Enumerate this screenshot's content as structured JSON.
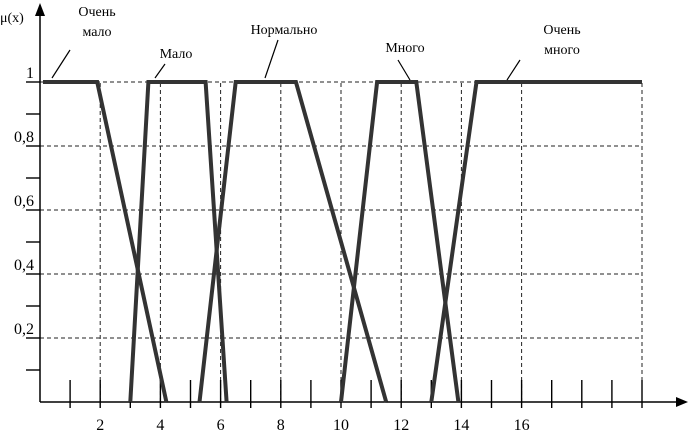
{
  "chart_data": {
    "type": "line",
    "title": "",
    "ylabel": "μ(x)",
    "xlabel": "",
    "xlim": [
      0,
      20.8
    ],
    "ylim": [
      0,
      1
    ],
    "grid": true,
    "grid_style": "dashed",
    "x_ticks": [
      1,
      2,
      3,
      4,
      5,
      6,
      7,
      8,
      9,
      10,
      11,
      12,
      13,
      14,
      15,
      16,
      17,
      18,
      19,
      20
    ],
    "x_tick_labels": [
      {
        "x": 2,
        "label": "2"
      },
      {
        "x": 4,
        "label": "4"
      },
      {
        "x": 6,
        "label": "6"
      },
      {
        "x": 8,
        "label": "8"
      },
      {
        "x": 10,
        "label": "10"
      },
      {
        "x": 12,
        "label": "12"
      },
      {
        "x": 14,
        "label": "14"
      },
      {
        "x": 16,
        "label": "16"
      }
    ],
    "y_ticks": [
      0.1,
      0.2,
      0.3,
      0.4,
      0.5,
      0.6,
      0.7,
      0.8,
      0.9,
      1.0
    ],
    "y_tick_labels": [
      {
        "y": 0.2,
        "label": "0,2"
      },
      {
        "y": 0.4,
        "label": "0,4"
      },
      {
        "y": 0.6,
        "label": "0,6"
      },
      {
        "y": 0.8,
        "label": "0,8"
      },
      {
        "y": 1.0,
        "label": "1"
      }
    ],
    "grid_x": [
      2,
      4,
      6,
      8,
      10,
      12,
      14,
      16,
      20
    ],
    "grid_y": [
      0.2,
      0.4,
      0.6,
      0.8,
      1.0
    ],
    "series": [
      {
        "name": "Очень мало",
        "label_lines": [
          "Очень",
          "мало"
        ],
        "points": [
          [
            0.1,
            1
          ],
          [
            1.9,
            1
          ],
          [
            4.2,
            0
          ]
        ]
      },
      {
        "name": "Мало",
        "label_lines": [
          "Мало"
        ],
        "points": [
          [
            3.0,
            0
          ],
          [
            3.6,
            1
          ],
          [
            5.5,
            1
          ],
          [
            6.2,
            0
          ]
        ]
      },
      {
        "name": "Нормально",
        "label_lines": [
          "Нормально"
        ],
        "points": [
          [
            5.3,
            0
          ],
          [
            6.5,
            1
          ],
          [
            8.5,
            1
          ],
          [
            11.5,
            0
          ]
        ]
      },
      {
        "name": "Много",
        "label_lines": [
          "Много"
        ],
        "points": [
          [
            10.0,
            0
          ],
          [
            11.2,
            1
          ],
          [
            12.5,
            1
          ],
          [
            13.9,
            0
          ]
        ]
      },
      {
        "name": "Очень много",
        "label_lines": [
          "Очень",
          "много"
        ],
        "points": [
          [
            13.0,
            0
          ],
          [
            14.5,
            1
          ],
          [
            20.0,
            1
          ]
        ]
      }
    ],
    "line_color": "#333333",
    "grid_color": "#222222"
  }
}
